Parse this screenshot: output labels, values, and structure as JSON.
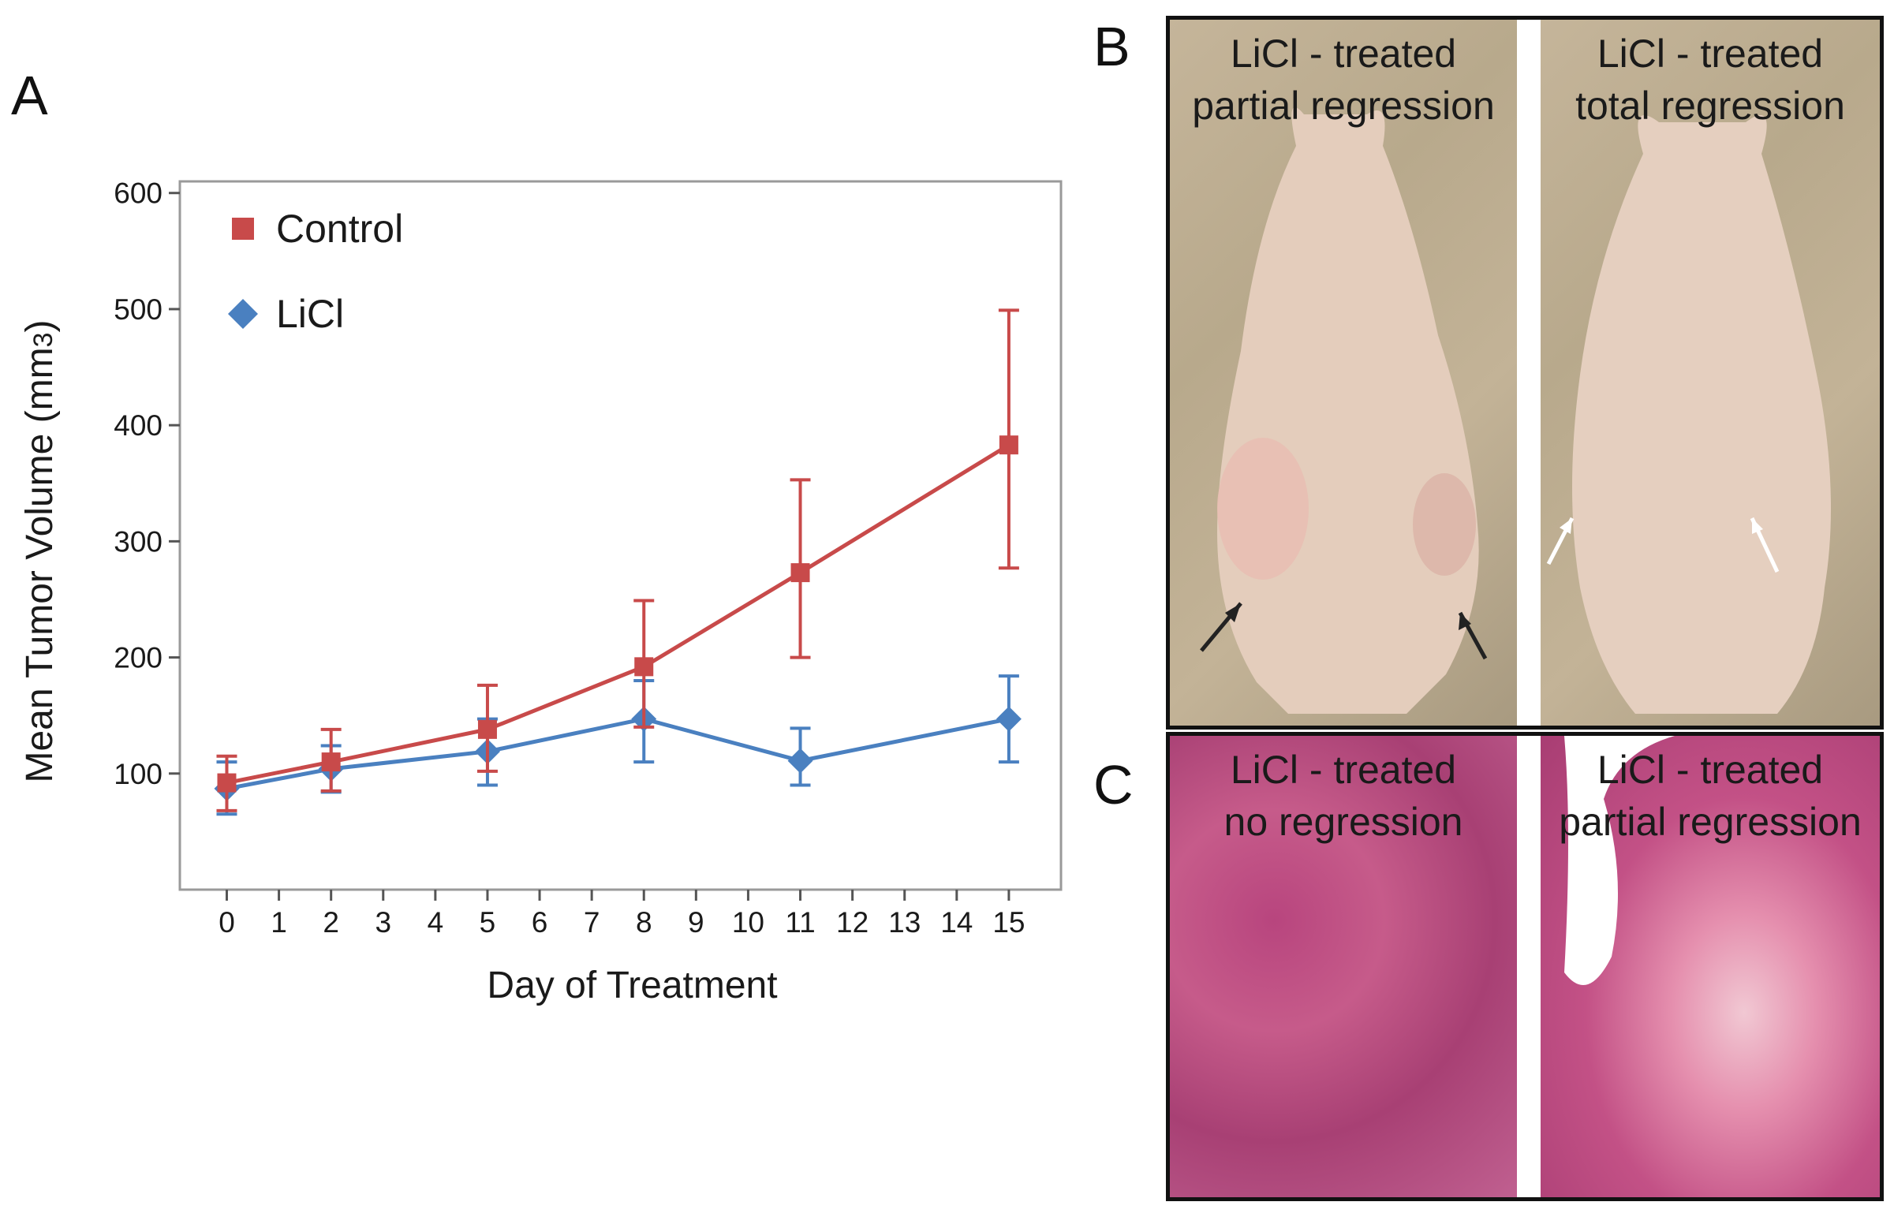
{
  "panel_labels": {
    "a": "A",
    "b": "B",
    "c": "C"
  },
  "chart_data": {
    "type": "line",
    "title": "",
    "xlabel": "Day of Treatment",
    "ylabel": "Mean Tumor Volume (mm",
    "ylabel_sub": "3",
    "ylabel_tail": ")",
    "xlim": [
      -0.9,
      16.0
    ],
    "ylim": [
      0,
      610
    ],
    "x_ticks": [
      0,
      1,
      2,
      3,
      4,
      5,
      6,
      7,
      8,
      9,
      10,
      11,
      12,
      13,
      14,
      15
    ],
    "y_ticks": [
      100,
      200,
      300,
      400,
      500,
      600
    ],
    "grid": false,
    "legend_position": "top-left",
    "series": [
      {
        "name": "Control",
        "color": "#c84a4a",
        "marker": "square",
        "x": [
          0,
          2,
          5,
          8,
          11,
          15
        ],
        "values": [
          92,
          110,
          138,
          192,
          273,
          383
        ],
        "err_low": [
          68,
          85,
          102,
          140,
          200,
          277
        ],
        "err_high": [
          115,
          138,
          176,
          249,
          353,
          499
        ]
      },
      {
        "name": "LiCl",
        "color": "#4a80c0",
        "marker": "diamond",
        "x": [
          0,
          2,
          5,
          8,
          11,
          15
        ],
        "values": [
          87,
          104,
          119,
          147,
          111,
          147
        ],
        "err_low": [
          65,
          84,
          90,
          110,
          90,
          110
        ],
        "err_high": [
          110,
          124,
          147,
          180,
          139,
          184
        ]
      }
    ]
  },
  "panel_b": {
    "left_caption": [
      "LiCl - treated",
      "partial regression"
    ],
    "right_caption": [
      "LiCl - treated",
      "total regression"
    ]
  },
  "panel_c": {
    "left_caption": [
      "LiCl - treated",
      "no regression"
    ],
    "right_caption": [
      "LiCl - treated",
      "partial regression"
    ]
  }
}
